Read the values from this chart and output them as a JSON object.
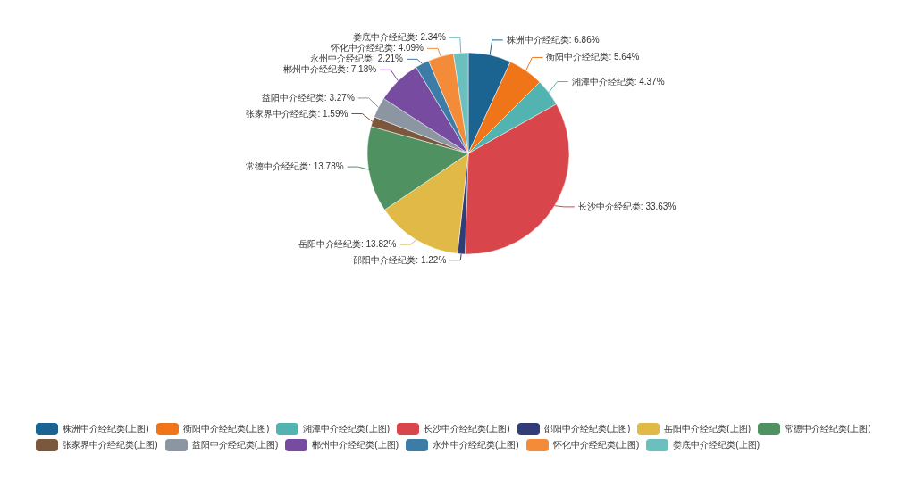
{
  "chart_data": {
    "type": "pie",
    "categories": [
      "株洲中介经纪类(上图)",
      "衡阳中介经纪类(上图)",
      "湘潭中介经纪类(上图)",
      "长沙中介经纪类(上图)",
      "邵阳中介经纪类(上图)",
      "岳阳中介经纪类(上图)",
      "常德中介经纪类(上图)",
      "张家界中介经纪类(上图)",
      "益阳中介经纪类(上图)",
      "郴州中介经纪类(上图)",
      "永州中介经纪类(上图)",
      "怀化中介经纪类(上图)",
      "娄底中介经纪类(上图)"
    ],
    "values": [
      6.86,
      5.64,
      4.37,
      33.63,
      1.22,
      13.82,
      13.78,
      1.59,
      3.27,
      7.18,
      2.21,
      4.09,
      2.34
    ],
    "value_labels": [
      "株洲中介经纪类: 6.86%",
      "衡阳中介经纪类: 5.64%",
      "湘潭中介经纪类: 4.37%",
      "长沙中介经纪类: 33.63%",
      "邵阳中介经纪类: 1.22%",
      "岳阳中介经纪类: 13.82%",
      "常德中介经纪类: 13.78%",
      "张家界中介经纪类: 1.59%",
      "益阳中介经纪类: 3.27%",
      "郴州中介经纪类: 7.18%",
      "永州中介经纪类: 2.21%",
      "怀化中介经纪类: 4.09%",
      "娄底中介经纪类: 2.34%"
    ],
    "colors": [
      "#1b6491",
      "#f07418",
      "#52b3b0",
      "#d8464b",
      "#323c78",
      "#e0b946",
      "#4f9161",
      "#7b573e",
      "#8b96a2",
      "#764ba0",
      "#3c7ca6",
      "#f38b39",
      "#6bbfbd"
    ],
    "legend": "bottom"
  }
}
